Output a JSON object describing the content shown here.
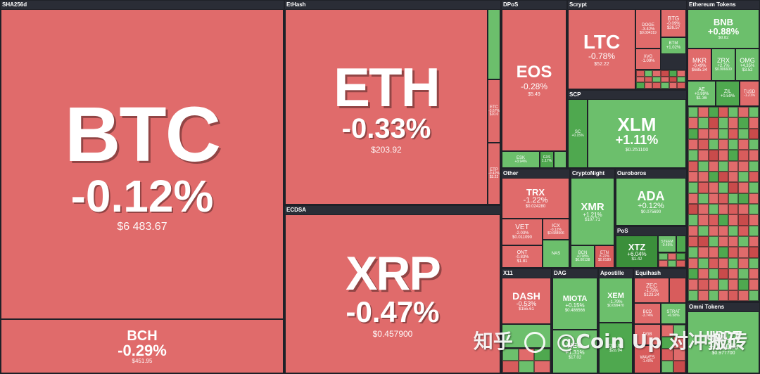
{
  "sectors": {
    "sha256d": "SHA256d",
    "ethash": "EtHash",
    "ecdsa": "ECDSA",
    "dpos": "DPoS",
    "scrypt": "Scrypt",
    "eth_tokens": "Ethereum Tokens",
    "scp": "SCP",
    "other": "Other",
    "cryptonight": "CryptoNight",
    "ouroboros": "Ouroboros",
    "pos": "PoS",
    "x11": "X11",
    "dag": "DAG",
    "apostille": "Apostille",
    "equihash": "Equihash",
    "omni": "Omni Tokens"
  },
  "coins": {
    "btc": {
      "sym": "BTC",
      "chg": "-0.12%",
      "price": "$6 483.67"
    },
    "bch": {
      "sym": "BCH",
      "chg": "-0.29%",
      "price": "$451.95"
    },
    "eth": {
      "sym": "ETH",
      "chg": "-0.33%",
      "price": "$203.92"
    },
    "etc": {
      "sym": "ETC",
      "chg": "-3.67%",
      "price": "$10.0"
    },
    "etp": {
      "sym": "ETP",
      "chg": "-0.42%",
      "price": "$3.22"
    },
    "xrp": {
      "sym": "XRP",
      "chg": "-0.47%",
      "price": "$0.457900"
    },
    "eos": {
      "sym": "EOS",
      "chg": "-0.28%",
      "price": "$5.49"
    },
    "esk": {
      "sym": "ESK",
      "chg": "+3.94%",
      "price": ""
    },
    "gxs": {
      "sym": "GXS",
      "chg": "1.17%",
      "price": ""
    },
    "ltc": {
      "sym": "LTC",
      "chg": "-0.78%",
      "price": "$52.22"
    },
    "doge": {
      "sym": "DOGE",
      "chg": "-3.42%",
      "price": "$0.004319"
    },
    "btg": {
      "sym": "BTG",
      "chg": "-0.09%",
      "price": "$26.57"
    },
    "btm": {
      "sym": "BTM",
      "chg": "+1.02%",
      "price": ""
    },
    "xvg": {
      "sym": "XVG",
      "chg": "-1.09%",
      "price": ""
    },
    "bnb": {
      "sym": "BNB",
      "chg": "+0.88%",
      "price": "$8.82"
    },
    "mkr": {
      "sym": "MKR",
      "chg": "-0.49%",
      "price": "$685.34"
    },
    "zrx": {
      "sym": "ZRX",
      "chg": "+2.7%",
      "price": "$0.906600"
    },
    "omg": {
      "sym": "OMG",
      "chg": "+4.35%",
      "price": "$3.52"
    },
    "ae": {
      "sym": "AE",
      "chg": "+0.99%",
      "price": "$1.36"
    },
    "zil": {
      "sym": "ZIL",
      "chg": "+0.59%",
      "price": ""
    },
    "tusd": {
      "sym": "TUSD",
      "chg": "-1.21%",
      "price": ""
    },
    "xlm": {
      "sym": "XLM",
      "chg": "+1.11%",
      "price": "$0.251100"
    },
    "trx": {
      "sym": "TRX",
      "chg": "-1.22%",
      "price": "$0.024280"
    },
    "vet": {
      "sym": "VET",
      "chg": "-2.03%",
      "price": "$0.011090"
    },
    "icx": {
      "sym": "ICX",
      "chg": "-0.12%",
      "price": "$0.688506"
    },
    "ont": {
      "sym": "ONT",
      "chg": "-0.83%",
      "price": "$1.81"
    },
    "nas": {
      "sym": "NAS",
      "chg": "",
      "price": ""
    },
    "xmr": {
      "sym": "XMR",
      "chg": "+1.21%",
      "price": "$107.71"
    },
    "bcn": {
      "sym": "BCN",
      "chg": "+0.98%",
      "price": "$0.00138"
    },
    "etn": {
      "sym": "ETN",
      "chg": "8.22%",
      "price": "$0.0180"
    },
    "ada": {
      "sym": "ADA",
      "chg": "+0.12%",
      "price": "$0.075690"
    },
    "xtz": {
      "sym": "XTZ",
      "chg": "+6.04%",
      "price": "$1.42"
    },
    "steem": {
      "sym": "STEEM",
      "chg": "-0.45%",
      "price": ""
    },
    "dash": {
      "sym": "DASH",
      "chg": "-0.53%",
      "price": "$155.61"
    },
    "miota": {
      "sym": "MIOTA",
      "chg": "+0.15%",
      "price": "$0.486566"
    },
    "xem": {
      "sym": "XEM",
      "chg": "-1.79%",
      "price": "$0.099470"
    },
    "zec": {
      "sym": "ZEC",
      "chg": "-1.73%",
      "price": "$123.24"
    },
    "bcd": {
      "sym": "BCD",
      "chg": "-3.74%",
      "price": ""
    },
    "strat": {
      "sym": "STRAT",
      "chg": "+6.58%",
      "price": ""
    },
    "neo": {
      "sym": "NEO",
      "chg": "+1.31%",
      "price": "$17.02"
    },
    "dgb": {
      "sym": "DGB",
      "chg": "",
      "price": ""
    },
    "qtum": {
      "sym": "QTUM",
      "chg": "",
      "price": "$28.94"
    },
    "waves": {
      "sym": "WAVES",
      "chg": "-1.40%",
      "price": ""
    },
    "usdt": {
      "sym": "USDT",
      "chg": "+0.00%",
      "price": "$0.977700"
    },
    "sc": {
      "sym": "SC",
      "chg": "+0.15%",
      "price": ""
    }
  },
  "watermark": {
    "text1": "知乎",
    "text2": "@Coin Up",
    "text3": "对冲搬砖"
  },
  "colors": {
    "negative": "#e06b6b",
    "positive": "#6cbf6c",
    "border": "#1f2128"
  }
}
